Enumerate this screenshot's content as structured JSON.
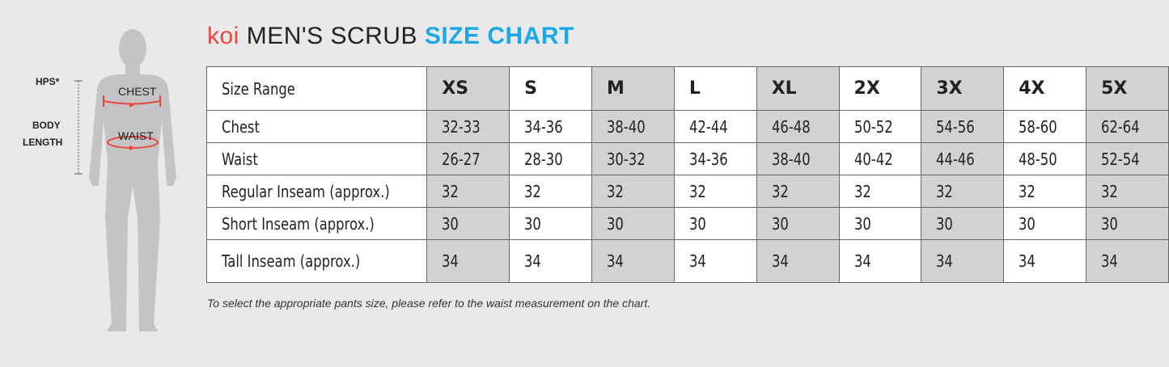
{
  "figure": {
    "labels": {
      "hps": "HPS*",
      "body_length_1": "BODY",
      "body_length_2": "LENGTH",
      "chest": "CHEST",
      "waist": "WAIST"
    },
    "colors": {
      "silhouette": "#c4c4c6",
      "arrows": "#e8493f"
    }
  },
  "title": {
    "brand": "koi",
    "main": "MEN'S SCRUB",
    "accent": "SIZE CHART"
  },
  "table": {
    "header": {
      "label": "Size Range",
      "sizes": [
        "XS",
        "S",
        "M",
        "L",
        "XL",
        "2X",
        "3X",
        "4X",
        "5X"
      ]
    },
    "rows": [
      {
        "label": "Chest",
        "values": [
          "32-33",
          "34-36",
          "38-40",
          "42-44",
          "46-48",
          "50-52",
          "54-56",
          "58-60",
          "62-64"
        ]
      },
      {
        "label": "Waist",
        "values": [
          "26-27",
          "28-30",
          "30-32",
          "34-36",
          "38-40",
          "40-42",
          "44-46",
          "48-50",
          "52-54"
        ]
      },
      {
        "label": "Regular Inseam (approx.)",
        "values": [
          "32",
          "32",
          "32",
          "32",
          "32",
          "32",
          "32",
          "32",
          "32"
        ]
      },
      {
        "label": "Short Inseam (approx.)",
        "values": [
          "30",
          "30",
          "30",
          "30",
          "30",
          "30",
          "30",
          "30",
          "30"
        ]
      },
      {
        "label": "Tall Inseam (approx.)",
        "values": [
          "34",
          "34",
          "34",
          "34",
          "34",
          "34",
          "34",
          "34",
          "34"
        ]
      }
    ]
  },
  "note": "To select the appropriate pants size, please refer to the waist measurement on the chart."
}
